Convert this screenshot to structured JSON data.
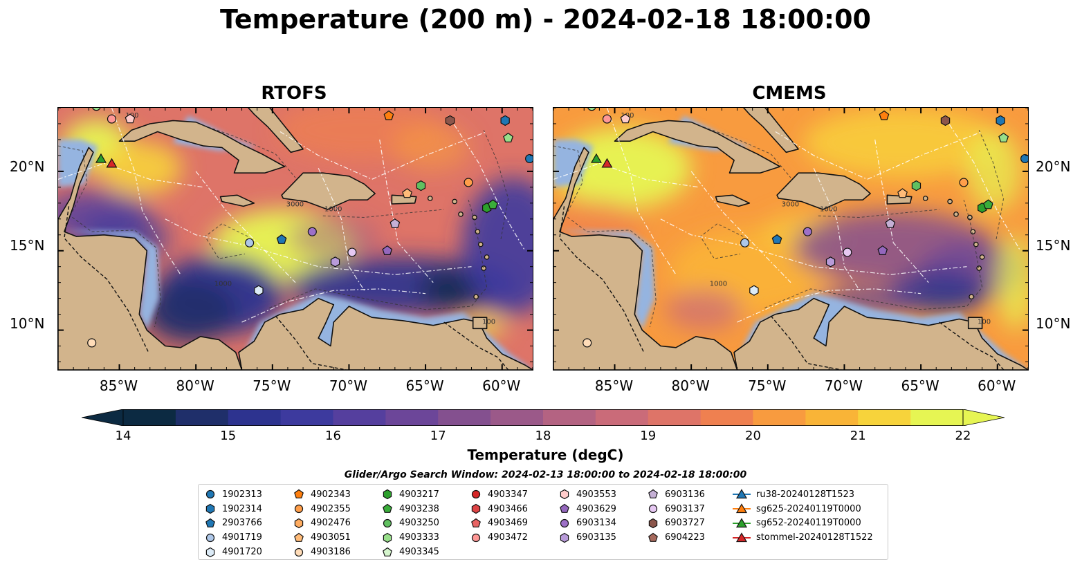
{
  "title": "Temperature (200 m) - 2024-02-18 18:00:00",
  "panels": [
    {
      "id": "rtofs",
      "title": "RTOFS",
      "scheme": "rtofs"
    },
    {
      "id": "cmems",
      "title": "CMEMS",
      "scheme": "cmems"
    }
  ],
  "map": {
    "lon_range": [
      -89,
      -58
    ],
    "lat_range": [
      7.5,
      24
    ],
    "lon_ticks": [
      "85°W",
      "80°W",
      "75°W",
      "70°W",
      "65°W",
      "60°W"
    ],
    "lon_tick_values": [
      -85,
      -80,
      -75,
      -70,
      -65,
      -60
    ],
    "lat_ticks": [
      "20°N",
      "15°N",
      "10°N"
    ],
    "lat_tick_values": [
      20,
      15,
      10
    ],
    "land_color": "#d2b48c",
    "shelf_color": "#95b4e0",
    "deep_color": "#062538",
    "contour_labels": [
      "100",
      "1000",
      "3000"
    ]
  },
  "colorbar": {
    "label": "Temperature (degC)",
    "min": 14,
    "max": 22,
    "ticks": [
      "14",
      "15",
      "16",
      "17",
      "18",
      "19",
      "20",
      "21",
      "22"
    ],
    "colors": [
      "#0c2a42",
      "#1f2f6a",
      "#2d338f",
      "#3d3a9e",
      "#553f9e",
      "#6c4699",
      "#84508f",
      "#9b5989",
      "#b46382",
      "#ca6b79",
      "#de7468",
      "#ef8050",
      "#f89b3f",
      "#f9b437",
      "#f7d33b",
      "#e6f553"
    ],
    "extend": "both"
  },
  "search_window": "Glider/Argo Search Window: 2024-02-13 18:00:00 to 2024-02-18 18:00:00",
  "legend": {
    "columns": [
      [
        {
          "label": "1902313",
          "shape": "circle",
          "color": "#1f77b4"
        },
        {
          "label": "1902314",
          "shape": "hexagon",
          "color": "#1f77b4"
        },
        {
          "label": "2903766",
          "shape": "pentagon",
          "color": "#1f77b4"
        },
        {
          "label": "4901719",
          "shape": "circle",
          "color": "#aec7e8"
        },
        {
          "label": "4901720",
          "shape": "hexagon",
          "color": "#dcebf7"
        }
      ],
      [
        {
          "label": "4902343",
          "shape": "pentagon",
          "color": "#ff7f0e"
        },
        {
          "label": "4902355",
          "shape": "circle",
          "color": "#ff9e4a"
        },
        {
          "label": "4902476",
          "shape": "hexagon",
          "color": "#ffac60"
        },
        {
          "label": "4903051",
          "shape": "pentagon",
          "color": "#ffbb78"
        },
        {
          "label": "4903186",
          "shape": "circle",
          "color": "#ffdcb8"
        }
      ],
      [
        {
          "label": "4903217",
          "shape": "hexagon",
          "color": "#2ca02c"
        },
        {
          "label": "4903238",
          "shape": "pentagon",
          "color": "#3aad3a"
        },
        {
          "label": "4903250",
          "shape": "circle",
          "color": "#60c060"
        },
        {
          "label": "4903333",
          "shape": "hexagon",
          "color": "#98df8a"
        },
        {
          "label": "4903345",
          "shape": "pentagon",
          "color": "#d5f5cd"
        }
      ],
      [
        {
          "label": "4903347",
          "shape": "circle",
          "color": "#d62728"
        },
        {
          "label": "4903466",
          "shape": "hexagon",
          "color": "#de4445"
        },
        {
          "label": "4903469",
          "shape": "pentagon",
          "color": "#e86464"
        },
        {
          "label": "4903472",
          "shape": "circle",
          "color": "#ff9896"
        }
      ],
      [
        {
          "label": "4903553",
          "shape": "hexagon",
          "color": "#ffcccb"
        },
        {
          "label": "4903629",
          "shape": "pentagon",
          "color": "#9467bd"
        },
        {
          "label": "6903134",
          "shape": "circle",
          "color": "#9d70c7"
        },
        {
          "label": "6903135",
          "shape": "hexagon",
          "color": "#b89bd9"
        }
      ],
      [
        {
          "label": "6903136",
          "shape": "pentagon",
          "color": "#c5b0d5"
        },
        {
          "label": "6903137",
          "shape": "circle",
          "color": "#e6c8f2"
        },
        {
          "label": "6903727",
          "shape": "hexagon",
          "color": "#8c564b"
        },
        {
          "label": "6904223",
          "shape": "pentagon",
          "color": "#a6695c"
        }
      ],
      [
        {
          "label": "ru38-20240128T1523",
          "shape": "triangle-line",
          "color": "#1f77b4"
        },
        {
          "label": "sg625-20240119T0000",
          "shape": "triangle-line",
          "color": "#ff7f0e"
        },
        {
          "label": "sg652-20240119T0000",
          "shape": "triangle-line",
          "color": "#2ca02c"
        },
        {
          "label": "stommel-20240128T1522",
          "shape": "triangle-line",
          "color": "#d62728"
        }
      ]
    ]
  },
  "markers": [
    {
      "lon": -86.2,
      "lat": 20.8,
      "shape": "triangle",
      "color": "#2ca02c"
    },
    {
      "lon": -85.5,
      "lat": 20.5,
      "shape": "triangle",
      "color": "#d62728"
    },
    {
      "lon": -85.5,
      "lat": 23.3,
      "shape": "circle",
      "color": "#ff9896"
    },
    {
      "lon": -86.5,
      "lat": 24.1,
      "shape": "circle",
      "color": "#98df8a"
    },
    {
      "lon": -84.3,
      "lat": 23.3,
      "shape": "pentagon",
      "color": "#ffcccb"
    },
    {
      "lon": -67.4,
      "lat": 23.5,
      "shape": "pentagon",
      "color": "#ff7f0e"
    },
    {
      "lon": -63.4,
      "lat": 23.2,
      "shape": "hexagon",
      "color": "#8c564b"
    },
    {
      "lon": -59.8,
      "lat": 23.2,
      "shape": "hexagon",
      "color": "#1f77b4"
    },
    {
      "lon": -59.6,
      "lat": 22.1,
      "shape": "pentagon",
      "color": "#98df8a"
    },
    {
      "lon": -58.2,
      "lat": 20.8,
      "shape": "circle",
      "color": "#1f77b4"
    },
    {
      "lon": -62.2,
      "lat": 19.3,
      "shape": "circle",
      "color": "#ff9e4a"
    },
    {
      "lon": -65.3,
      "lat": 19.1,
      "shape": "hexagon",
      "color": "#60c060"
    },
    {
      "lon": -66.2,
      "lat": 18.6,
      "shape": "pentagon",
      "color": "#ffbb78"
    },
    {
      "lon": -61.0,
      "lat": 17.7,
      "shape": "hexagon",
      "color": "#2ca02c"
    },
    {
      "lon": -60.6,
      "lat": 17.9,
      "shape": "pentagon",
      "color": "#3aad3a"
    },
    {
      "lon": -67.0,
      "lat": 16.7,
      "shape": "pentagon",
      "color": "#c5b0d5"
    },
    {
      "lon": -72.4,
      "lat": 16.2,
      "shape": "circle",
      "color": "#9d70c7"
    },
    {
      "lon": -74.4,
      "lat": 15.7,
      "shape": "pentagon",
      "color": "#1f77b4"
    },
    {
      "lon": -76.5,
      "lat": 15.5,
      "shape": "circle",
      "color": "#aec7e8"
    },
    {
      "lon": -67.5,
      "lat": 15.0,
      "shape": "pentagon",
      "color": "#9467bd"
    },
    {
      "lon": -69.8,
      "lat": 14.9,
      "shape": "circle",
      "color": "#e6c8f2"
    },
    {
      "lon": -70.9,
      "lat": 14.3,
      "shape": "hexagon",
      "color": "#b89bd9"
    },
    {
      "lon": -75.9,
      "lat": 12.5,
      "shape": "hexagon",
      "color": "#dcebf7"
    },
    {
      "lon": -86.8,
      "lat": 9.2,
      "shape": "circle",
      "color": "#ffdcb8"
    }
  ]
}
